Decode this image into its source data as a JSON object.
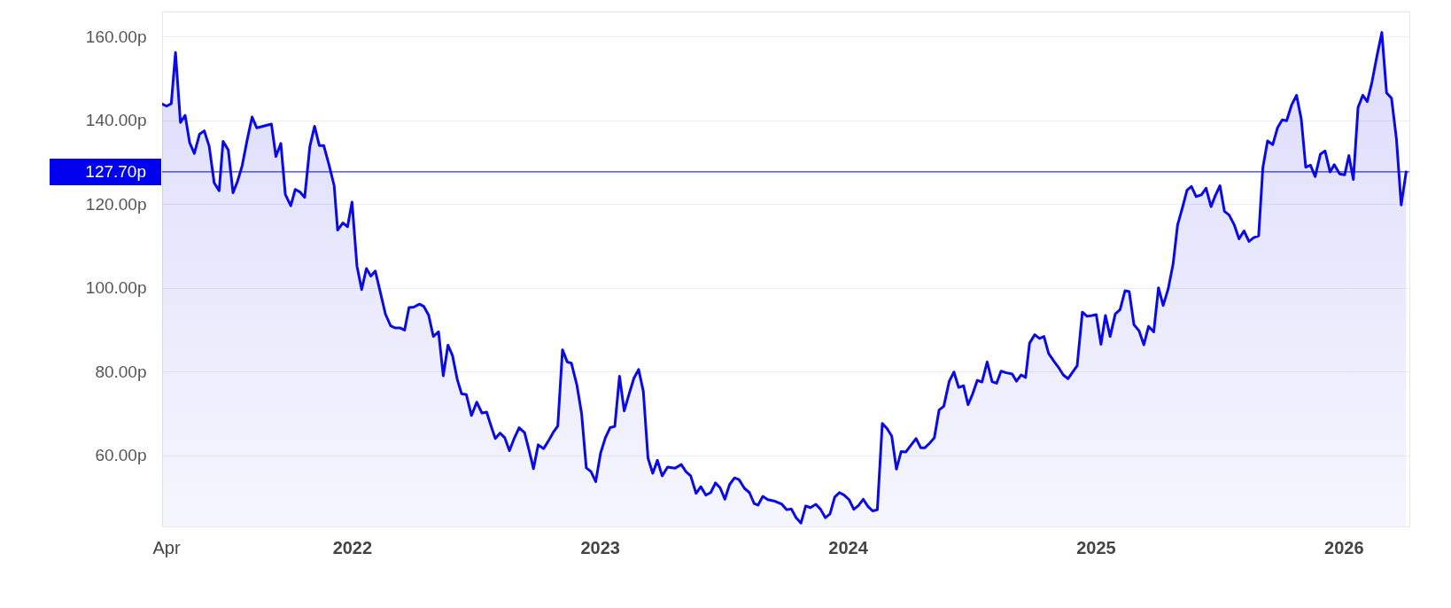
{
  "chart_data": {
    "type": "area",
    "x": [
      2021.234,
      2021.252,
      2021.271,
      2021.288,
      2021.308,
      2021.327,
      2021.345,
      2021.364,
      2021.385,
      2021.404,
      2021.424,
      2021.444,
      2021.464,
      2021.48,
      2021.501,
      2021.52,
      2021.538,
      2021.557,
      2021.578,
      2021.597,
      2021.616,
      2021.675,
      2021.693,
      2021.713,
      2021.731,
      2021.753,
      2021.771,
      2021.79,
      2021.809,
      2021.83,
      2021.849,
      2021.868,
      2021.886,
      2021.909,
      2021.928,
      2021.942,
      2021.963,
      2021.982,
      2022.0,
      2022.02,
      2022.039,
      2022.058,
      2022.076,
      2022.094,
      2022.116,
      2022.135,
      2022.156,
      2022.175,
      2022.195,
      2022.212,
      2022.23,
      2022.249,
      2022.272,
      2022.289,
      2022.309,
      2022.328,
      2022.349,
      2022.368,
      2022.387,
      2022.405,
      2022.425,
      2022.442,
      2022.461,
      2022.482,
      2022.503,
      2022.524,
      2022.543,
      2022.563,
      2022.578,
      2022.597,
      2022.616,
      2022.635,
      2022.654,
      2022.674,
      2022.696,
      2022.715,
      2022.732,
      2022.751,
      2022.773,
      2022.792,
      2022.811,
      2022.83,
      2022.849,
      2022.868,
      2022.885,
      2022.907,
      2022.926,
      2022.945,
      2022.964,
      2022.983,
      2023.003,
      2023.022,
      2023.041,
      2023.06,
      2023.079,
      2023.098,
      2023.117,
      2023.137,
      2023.156,
      2023.175,
      2023.194,
      2023.213,
      2023.232,
      2023.251,
      2023.273,
      2023.302,
      2023.328,
      2023.347,
      2023.366,
      2023.388,
      2023.407,
      2023.427,
      2023.447,
      2023.466,
      2023.485,
      2023.504,
      2023.523,
      2023.543,
      2023.561,
      2023.583,
      2023.603,
      2023.622,
      2023.638,
      2023.657,
      2023.677,
      2023.702,
      2023.734,
      2023.753,
      2023.772,
      2023.791,
      2023.811,
      2023.83,
      2023.849,
      2023.871,
      2023.89,
      2023.909,
      2023.928,
      2023.947,
      2023.966,
      2023.985,
      2024.005,
      2024.024,
      2024.043,
      2024.062,
      2024.081,
      2024.1,
      2024.119,
      2024.139,
      2024.158,
      2024.177,
      2024.196,
      2024.215,
      2024.234,
      2024.253,
      2024.275,
      2024.294,
      2024.311,
      2024.33,
      2024.349,
      2024.368,
      2024.387,
      2024.409,
      2024.428,
      2024.447,
      2024.467,
      2024.485,
      2024.503,
      2024.522,
      2024.541,
      2024.562,
      2024.582,
      2024.6,
      2024.618,
      2024.64,
      2024.663,
      2024.68,
      2024.699,
      2024.717,
      2024.733,
      2024.754,
      2024.773,
      2024.791,
      2024.81,
      2024.832,
      2024.852,
      2024.869,
      2024.888,
      2024.906,
      2024.925,
      2024.946,
      2024.965,
      2024.985,
      2025.002,
      2025.021,
      2025.039,
      2025.058,
      2025.079,
      2025.098,
      2025.118,
      2025.135,
      2025.154,
      2025.175,
      2025.194,
      2025.213,
      2025.234,
      2025.253,
      2025.272,
      2025.292,
      2025.312,
      2025.33,
      2025.349,
      2025.368,
      2025.386,
      2025.405,
      2025.426,
      2025.445,
      2025.465,
      2025.482,
      2025.501,
      2025.519,
      2025.538,
      2025.559,
      2025.578,
      2025.598,
      2025.618,
      2025.637,
      2025.657,
      2025.674,
      2025.693,
      2025.714,
      2025.733,
      2025.752,
      2025.77,
      2025.79,
      2025.81,
      2025.829,
      2025.847,
      2025.866,
      2025.885,
      2025.906,
      2025.925,
      2025.945,
      2025.962,
      2025.984,
      2026.004,
      2026.021,
      2026.039,
      2026.058,
      2026.077,
      2026.095,
      2026.114,
      2026.135,
      2026.154,
      2026.173,
      2026.193,
      2026.213,
      2026.232,
      2026.252
    ],
    "series": [
      {
        "color": "#0a0ae8",
        "values": [
          143.9,
          143.4,
          144.0,
          156.2,
          139.5,
          141.2,
          134.7,
          132.1,
          136.7,
          137.5,
          133.8,
          125.1,
          123.2,
          135.0,
          132.9,
          122.7,
          125.4,
          129.2,
          135.6,
          140.8,
          138.2,
          139.1,
          131.4,
          134.5,
          122.3,
          119.6,
          123.5,
          122.9,
          121.6,
          133.8,
          138.6,
          134.0,
          134.0,
          129.0,
          124.4,
          113.8,
          115.5,
          114.6,
          120.5,
          105.2,
          99.6,
          104.6,
          102.8,
          104.0,
          98.5,
          93.7,
          90.9,
          90.4,
          90.4,
          89.9,
          95.3,
          95.4,
          96.1,
          95.6,
          93.5,
          88.4,
          89.5,
          79.0,
          86.3,
          83.9,
          78.0,
          74.7,
          74.5,
          69.5,
          72.7,
          70.1,
          70.3,
          66.6,
          64.0,
          65.3,
          64.2,
          61.1,
          64.0,
          66.6,
          65.4,
          61.0,
          56.8,
          62.5,
          61.6,
          63.4,
          65.4,
          67.0,
          85.2,
          82.3,
          82.0,
          76.8,
          70.0,
          57.0,
          56.1,
          53.7,
          60.6,
          64.2,
          66.6,
          66.9,
          78.9,
          70.6,
          74.5,
          78.4,
          80.5,
          75.3,
          59.3,
          55.7,
          58.8,
          55.1,
          57.2,
          56.9,
          57.8,
          56.1,
          55.1,
          50.9,
          52.5,
          50.5,
          51.1,
          53.4,
          52.2,
          49.5,
          53.0,
          54.6,
          54.2,
          52.1,
          51.1,
          48.5,
          48.1,
          50.2,
          49.4,
          49.1,
          48.3,
          47.0,
          47.2,
          45.1,
          43.8,
          47.9,
          47.5,
          48.3,
          47.1,
          45.1,
          46.0,
          50.0,
          51.1,
          50.5,
          49.4,
          47.1,
          48.0,
          49.5,
          47.8,
          46.7,
          47.0,
          67.6,
          66.4,
          64.6,
          56.7,
          60.9,
          60.8,
          62.3,
          64.0,
          61.8,
          61.8,
          62.9,
          64.2,
          70.8,
          71.7,
          77.7,
          79.9,
          76.2,
          76.6,
          72.1,
          74.6,
          77.9,
          77.5,
          82.3,
          77.6,
          77.2,
          80.1,
          79.7,
          79.4,
          77.7,
          79.2,
          78.6,
          86.8,
          88.8,
          87.9,
          88.4,
          84.3,
          82.4,
          80.8,
          79.2,
          78.3,
          79.8,
          81.4,
          94.2,
          93.2,
          93.4,
          93.6,
          86.5,
          93.4,
          88.4,
          93.8,
          94.8,
          99.3,
          99.1,
          91.2,
          89.7,
          86.4,
          90.8,
          89.5,
          100.0,
          95.8,
          99.7,
          105.7,
          115.0,
          119.0,
          123.3,
          124.2,
          121.8,
          122.2,
          123.8,
          119.4,
          122.0,
          124.4,
          118.3,
          117.4,
          115.0,
          111.7,
          113.6,
          111.1,
          112.0,
          112.4,
          128.7,
          135.1,
          134.2,
          138.2,
          140.1,
          139.9,
          143.7,
          146.0,
          140.3,
          128.8,
          129.3,
          126.6,
          131.9,
          132.7,
          127.7,
          129.4,
          127.2,
          127.0,
          131.6,
          125.9,
          143.1,
          146.0,
          144.5,
          149.1,
          155.6,
          161.0,
          146.6,
          145.3,
          135.5,
          119.8,
          127.7
        ]
      }
    ],
    "xlim": [
      2021.234,
      2026.265
    ],
    "ylim": [
      43,
      166
    ],
    "xticks": [
      {
        "value": 2021.25,
        "label": "Apr"
      },
      2022,
      2023,
      2024,
      2025,
      2026
    ],
    "yticks": [
      {
        "value": 60,
        "label": "60.00p"
      },
      {
        "value": 80,
        "label": "80.00p"
      },
      {
        "value": 100,
        "label": "100.00p"
      },
      {
        "value": 120,
        "label": "120.00p"
      },
      {
        "value": 140,
        "label": "140.00p"
      },
      {
        "value": 160,
        "label": "160.00p"
      }
    ],
    "grid": "y",
    "ref_lines": [
      {
        "axis": "y",
        "value": 127.7,
        "label": "127.70p",
        "color": "#0000ee"
      }
    ]
  }
}
